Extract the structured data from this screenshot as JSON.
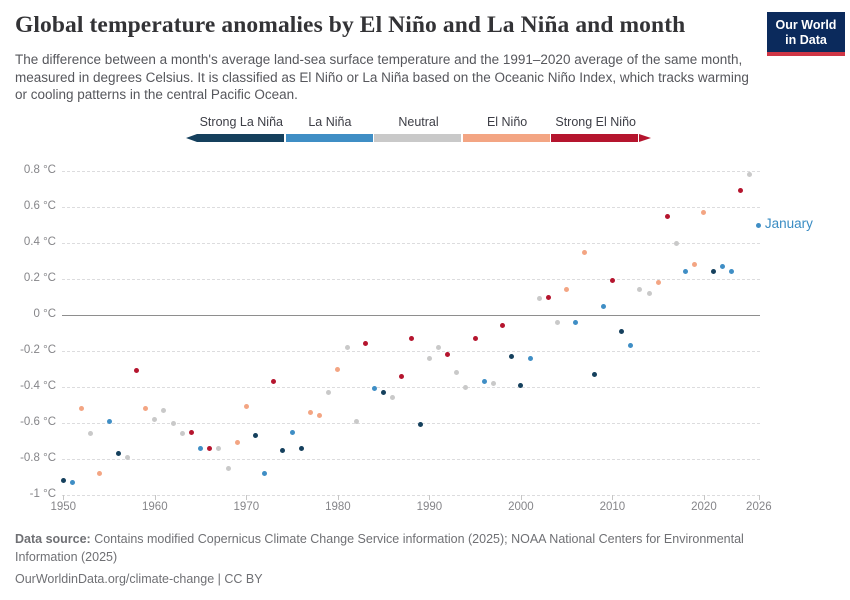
{
  "header": {
    "title": "Global temperature anomalies by El Niño and La Niña and month",
    "subtitle": "The difference between a month's average land-sea surface temperature and the 1991–2020 average of the same month, measured in degrees Celsius. It is classified as El Niño or La Niña based on the Oceanic Niño Index, which tracks warming or cooling patterns in the central Pacific Ocean.",
    "logo": {
      "line1": "Our World",
      "line2": "in Data",
      "bg_color": "#0b2a5c",
      "accent_color": "#cf3545"
    }
  },
  "legend": {
    "items": [
      {
        "key": "strong_la_nina",
        "label": "Strong La Niña",
        "color": "#15405d"
      },
      {
        "key": "la_nina",
        "label": "La Niña",
        "color": "#3f8ec5"
      },
      {
        "key": "neutral",
        "label": "Neutral",
        "color": "#c9c9c9"
      },
      {
        "key": "el_nino",
        "label": "El Niño",
        "color": "#f3a583"
      },
      {
        "key": "strong_el_nino",
        "label": "Strong El Niño",
        "color": "#b5152e"
      }
    ],
    "position": "top-center"
  },
  "chart_data": {
    "type": "scatter",
    "title": "Global temperature anomalies by El Niño and La Niña and month",
    "xlabel": "",
    "ylabel": "",
    "grid": "horizontal-dashed",
    "xlim": [
      1948.5,
      2027
    ],
    "ylim": [
      -1,
      0.8
    ],
    "x_ticks": [
      1950,
      1960,
      1970,
      1980,
      1990,
      2000,
      2010,
      2020,
      2026
    ],
    "y_ticks": [
      {
        "value": 0.8,
        "label": "0.8 °C"
      },
      {
        "value": 0.6,
        "label": "0.6 °C"
      },
      {
        "value": 0.4,
        "label": "0.4 °C"
      },
      {
        "value": 0.2,
        "label": "0.2 °C"
      },
      {
        "value": 0,
        "label": "0 °C"
      },
      {
        "value": -0.2,
        "label": "-0.2 °C"
      },
      {
        "value": -0.4,
        "label": "-0.4 °C"
      },
      {
        "value": -0.6,
        "label": "-0.6 °C"
      },
      {
        "value": -0.8,
        "label": "-0.8 °C"
      },
      {
        "value": -1,
        "label": "-1 °C"
      }
    ],
    "annotation": {
      "text": "January",
      "year": 2026,
      "value": 0.5,
      "color": "#3a8cc3"
    },
    "points": [
      {
        "year": 1950,
        "value": -0.92,
        "phase": "strong_la_nina"
      },
      {
        "year": 1951,
        "value": -0.93,
        "phase": "la_nina"
      },
      {
        "year": 1952,
        "value": -0.52,
        "phase": "el_nino"
      },
      {
        "year": 1953,
        "value": -0.66,
        "phase": "neutral"
      },
      {
        "year": 1954,
        "value": -0.88,
        "phase": "el_nino"
      },
      {
        "year": 1955,
        "value": -0.59,
        "phase": "la_nina"
      },
      {
        "year": 1956,
        "value": -0.77,
        "phase": "strong_la_nina"
      },
      {
        "year": 1957,
        "value": -0.79,
        "phase": "neutral"
      },
      {
        "year": 1958,
        "value": -0.31,
        "phase": "strong_el_nino"
      },
      {
        "year": 1959,
        "value": -0.52,
        "phase": "el_nino"
      },
      {
        "year": 1960,
        "value": -0.58,
        "phase": "neutral"
      },
      {
        "year": 1961,
        "value": -0.53,
        "phase": "neutral"
      },
      {
        "year": 1962,
        "value": -0.6,
        "phase": "neutral"
      },
      {
        "year": 1963,
        "value": -0.66,
        "phase": "neutral"
      },
      {
        "year": 1964,
        "value": -0.65,
        "phase": "strong_el_nino"
      },
      {
        "year": 1965,
        "value": -0.74,
        "phase": "la_nina"
      },
      {
        "year": 1966,
        "value": -0.74,
        "phase": "strong_el_nino"
      },
      {
        "year": 1967,
        "value": -0.74,
        "phase": "neutral"
      },
      {
        "year": 1968,
        "value": -0.85,
        "phase": "neutral"
      },
      {
        "year": 1969,
        "value": -0.71,
        "phase": "el_nino"
      },
      {
        "year": 1970,
        "value": -0.51,
        "phase": "el_nino"
      },
      {
        "year": 1971,
        "value": -0.67,
        "phase": "strong_la_nina"
      },
      {
        "year": 1972,
        "value": -0.88,
        "phase": "la_nina"
      },
      {
        "year": 1973,
        "value": -0.37,
        "phase": "strong_el_nino"
      },
      {
        "year": 1974,
        "value": -0.75,
        "phase": "strong_la_nina"
      },
      {
        "year": 1975,
        "value": -0.65,
        "phase": "la_nina"
      },
      {
        "year": 1976,
        "value": -0.74,
        "phase": "strong_la_nina"
      },
      {
        "year": 1977,
        "value": -0.54,
        "phase": "el_nino"
      },
      {
        "year": 1978,
        "value": -0.56,
        "phase": "el_nino"
      },
      {
        "year": 1979,
        "value": -0.43,
        "phase": "neutral"
      },
      {
        "year": 1980,
        "value": -0.3,
        "phase": "el_nino"
      },
      {
        "year": 1981,
        "value": -0.18,
        "phase": "neutral"
      },
      {
        "year": 1982,
        "value": -0.59,
        "phase": "neutral"
      },
      {
        "year": 1983,
        "value": -0.16,
        "phase": "strong_el_nino"
      },
      {
        "year": 1984,
        "value": -0.41,
        "phase": "la_nina"
      },
      {
        "year": 1985,
        "value": -0.43,
        "phase": "strong_la_nina"
      },
      {
        "year": 1986,
        "value": -0.46,
        "phase": "neutral"
      },
      {
        "year": 1987,
        "value": -0.34,
        "phase": "strong_el_nino"
      },
      {
        "year": 1988,
        "value": -0.13,
        "phase": "strong_el_nino"
      },
      {
        "year": 1989,
        "value": -0.61,
        "phase": "strong_la_nina"
      },
      {
        "year": 1990,
        "value": -0.24,
        "phase": "neutral"
      },
      {
        "year": 1991,
        "value": -0.18,
        "phase": "neutral"
      },
      {
        "year": 1992,
        "value": -0.22,
        "phase": "strong_el_nino"
      },
      {
        "year": 1993,
        "value": -0.32,
        "phase": "neutral"
      },
      {
        "year": 1994,
        "value": -0.4,
        "phase": "neutral"
      },
      {
        "year": 1995,
        "value": -0.13,
        "phase": "strong_el_nino"
      },
      {
        "year": 1996,
        "value": -0.37,
        "phase": "la_nina"
      },
      {
        "year": 1997,
        "value": -0.38,
        "phase": "neutral"
      },
      {
        "year": 1998,
        "value": -0.06,
        "phase": "strong_el_nino"
      },
      {
        "year": 1999,
        "value": -0.23,
        "phase": "strong_la_nina"
      },
      {
        "year": 2000,
        "value": -0.39,
        "phase": "strong_la_nina"
      },
      {
        "year": 2001,
        "value": -0.24,
        "phase": "la_nina"
      },
      {
        "year": 2002,
        "value": 0.09,
        "phase": "neutral"
      },
      {
        "year": 2003,
        "value": 0.1,
        "phase": "strong_el_nino"
      },
      {
        "year": 2004,
        "value": -0.04,
        "phase": "neutral"
      },
      {
        "year": 2005,
        "value": 0.14,
        "phase": "el_nino"
      },
      {
        "year": 2006,
        "value": -0.04,
        "phase": "la_nina"
      },
      {
        "year": 2007,
        "value": 0.35,
        "phase": "el_nino"
      },
      {
        "year": 2008,
        "value": -0.33,
        "phase": "strong_la_nina"
      },
      {
        "year": 2009,
        "value": 0.05,
        "phase": "la_nina"
      },
      {
        "year": 2010,
        "value": 0.19,
        "phase": "strong_el_nino"
      },
      {
        "year": 2011,
        "value": -0.09,
        "phase": "strong_la_nina"
      },
      {
        "year": 2012,
        "value": -0.17,
        "phase": "la_nina"
      },
      {
        "year": 2013,
        "value": 0.14,
        "phase": "neutral"
      },
      {
        "year": 2014,
        "value": 0.12,
        "phase": "neutral"
      },
      {
        "year": 2015,
        "value": 0.18,
        "phase": "el_nino"
      },
      {
        "year": 2016,
        "value": 0.55,
        "phase": "strong_el_nino"
      },
      {
        "year": 2017,
        "value": 0.4,
        "phase": "neutral"
      },
      {
        "year": 2018,
        "value": 0.24,
        "phase": "la_nina"
      },
      {
        "year": 2019,
        "value": 0.28,
        "phase": "el_nino"
      },
      {
        "year": 2020,
        "value": 0.57,
        "phase": "el_nino"
      },
      {
        "year": 2021,
        "value": 0.24,
        "phase": "strong_la_nina"
      },
      {
        "year": 2022,
        "value": 0.27,
        "phase": "la_nina"
      },
      {
        "year": 2023,
        "value": 0.24,
        "phase": "la_nina"
      },
      {
        "year": 2024,
        "value": 0.69,
        "phase": "strong_el_nino"
      },
      {
        "year": 2025,
        "value": 0.78,
        "phase": "neutral"
      },
      {
        "year": 2026,
        "value": 0.5,
        "phase": "la_nina"
      }
    ]
  },
  "footer": {
    "source_prefix": "Data source:",
    "source_text": " Contains modified Copernicus Climate Change Service information (2025); NOAA National Centers for Environmental",
    "source_line2": "Information (2025)",
    "note": "OurWorldinData.org/climate-change | CC BY"
  }
}
